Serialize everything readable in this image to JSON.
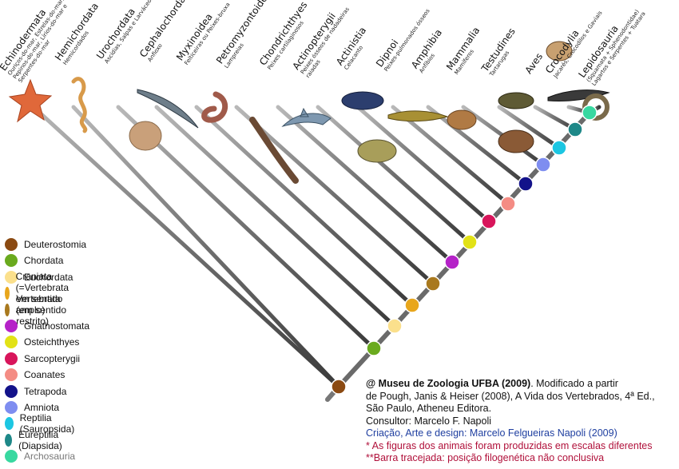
{
  "taxa": [
    {
      "name": "Echinodermata",
      "common": "Ouriços-do-mar, Estrelas-do-mar,\nPepinos-do-mar, Lírios-do-mar e\nSerpentes-do-mar",
      "icon": "starfish-icon"
    },
    {
      "name": "Hemichordata",
      "common": "Hemicordados",
      "icon": "acorn-worm-icon"
    },
    {
      "name": "Urochordata",
      "common": "Ascídias, Salpas e Larváceos",
      "icon": "tunicate-icon"
    },
    {
      "name": "Cephalochordata",
      "common": "Anfioxo",
      "icon": "lancelet-icon"
    },
    {
      "name": "Myxinoidea",
      "common": "Feiticeiras ou Peixes-bruxa",
      "icon": "hagfish-icon"
    },
    {
      "name": "Petromyzontoidea",
      "common": "Lampreias",
      "icon": "lamprey-icon"
    },
    {
      "name": "Chondrichthyes",
      "common": "Peixes cartilaginosos",
      "icon": "shark-icon"
    },
    {
      "name": "Actinopterygii",
      "common": "Peixes ósseos de nadadeiras\nraiadas",
      "icon": "piranha-icon"
    },
    {
      "name": "Actinistia",
      "common": "Celacanto",
      "icon": "coelacanth-icon"
    },
    {
      "name": "Dipnoi",
      "common": "Peixes-pulmonados ósseos",
      "icon": "lungfish-icon"
    },
    {
      "name": "Amphibia",
      "common": "Anfíbios",
      "icon": "frog-icon"
    },
    {
      "name": "Mammalia",
      "common": "Mamíferos",
      "icon": "capybara-icon"
    },
    {
      "name": "Testudines",
      "common": "Tartarugas",
      "icon": "turtle-icon"
    },
    {
      "name": "Aves",
      "common": "",
      "icon": "bird-icon"
    },
    {
      "name": "Crocodylia",
      "common": "Jacarés, Crocodilos e Gaviais",
      "icon": "crocodile-icon"
    },
    {
      "name": "Lepidosauria",
      "common": "(Squamata + Sphenodontidae)\nLagartos e Serpentes + Tuatara",
      "icon": "snake-icon"
    }
  ],
  "legend": [
    {
      "label": "Deuterostomia",
      "color": "#8b4a12"
    },
    {
      "label": "Chordata",
      "color": "#6aaa1e"
    },
    {
      "label": "Euchordata",
      "color": "#fbe08c"
    },
    {
      "label": "Craniata (=Vertebrata em sentido amplo)",
      "color": "#e8a61c"
    },
    {
      "label": "Vertebrata (em sentido restrito)",
      "color": "#a9791e"
    },
    {
      "label": "Gnathostomata",
      "color": "#b522c8"
    },
    {
      "label": "Osteichthyes",
      "color": "#e2e216"
    },
    {
      "label": "Sarcopterygii",
      "color": "#d8155b"
    },
    {
      "label": "Coanates",
      "color": "#f48c84"
    },
    {
      "label": "Tetrapoda",
      "color": "#13128a"
    },
    {
      "label": "Amniota",
      "color": "#7e8df0"
    },
    {
      "label": "Reptilia (Sauropsida)",
      "color": "#1cc6e2"
    },
    {
      "label": "Eureptilia (Diapsida)",
      "color": "#1e8888"
    },
    {
      "label": "Archosauria",
      "color": "#38d8a0"
    }
  ],
  "credits": {
    "bold": "@ Museu de Zoologia UFBA (2009)",
    "line1_rest": ". Modificado a partir",
    "line2": "de Pough, Janis & Heiser (2008), A Vida dos Vertebrados, 4ª Ed.,",
    "line3": "São Paulo, Atheneu Editora.",
    "line4": "Consultor: Marcelo F. Napoli",
    "line5": "Criação, Arte e design: Marcelo Felgueiras Napoli (2009)",
    "line6": "* As figuras dos animais foram produzidas em escalas diferentes",
    "line7": "**Barra tracejada: posição filogenética não conclusiva"
  }
}
